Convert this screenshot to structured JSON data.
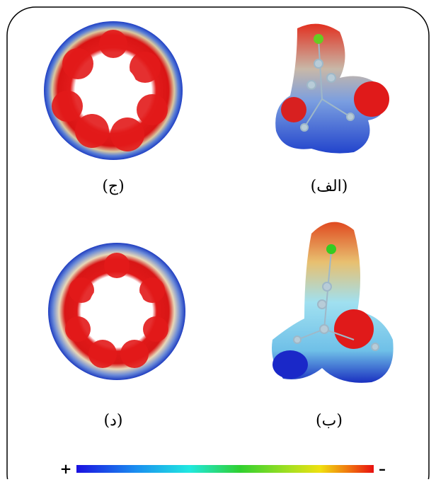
{
  "panels": [
    {
      "label": "(الف)"
    },
    {
      "label": "(ب)"
    },
    {
      "label": "(ج)"
    },
    {
      "label": "(د)"
    }
  ],
  "color_bar": {
    "positive_label": "+",
    "negative_label": "–"
  }
}
